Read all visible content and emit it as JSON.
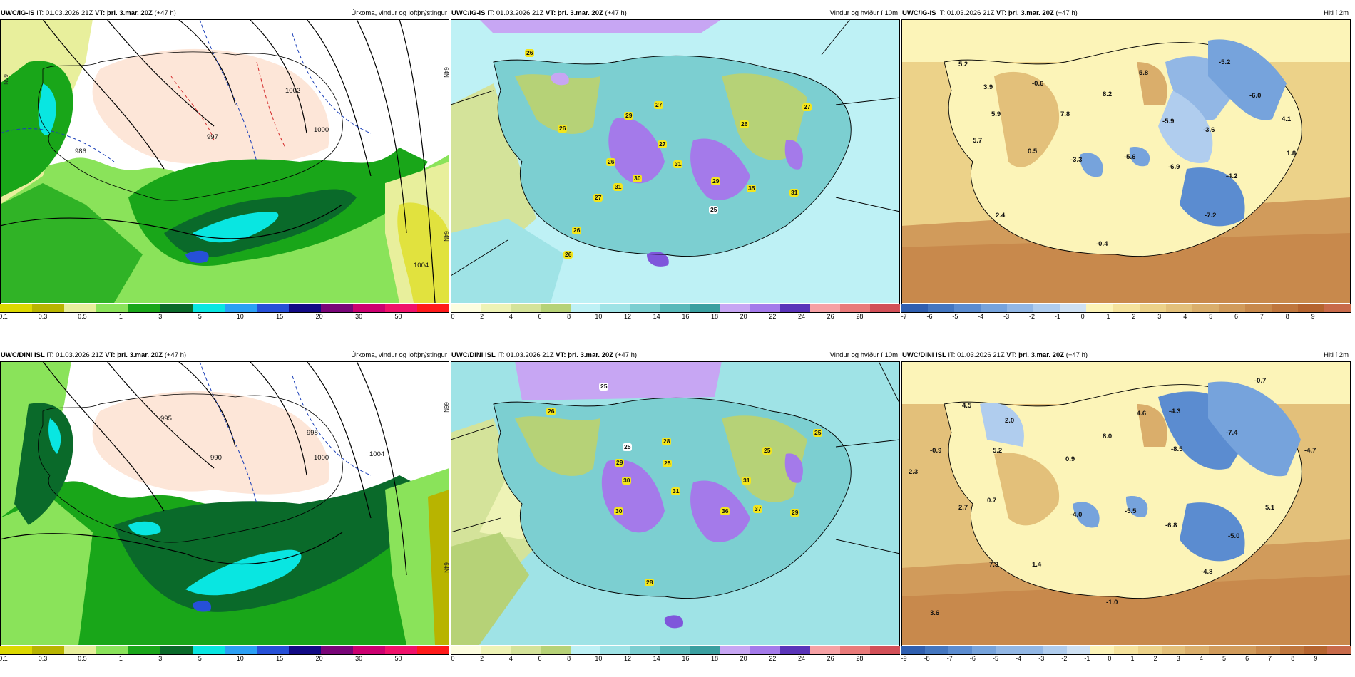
{
  "colors": {
    "precip": [
      "#dcd800",
      "#b8b400",
      "#e8ef9c",
      "#8ae35a",
      "#19a619",
      "#0a6a2a",
      "#09e6e1",
      "#2ba0f5",
      "#2650d8",
      "#120a85",
      "#790578",
      "#cc0070",
      "#f0116a",
      "#ff1a1a"
    ],
    "wind": [
      "#fdfde0",
      "#eef3b6",
      "#d4e39a",
      "#b6d277",
      "#9bc55c",
      "#bef1f5",
      "#9fe3e6",
      "#7ccfd1",
      "#59b9ba",
      "#3a9fa0",
      "#c7a6f3",
      "#a47aea",
      "#7f56db",
      "#5a34b9",
      "#f6a1a5",
      "#e97a7a",
      "#d24f57"
    ],
    "temp": [
      "#2f5fb0",
      "#4376c0",
      "#5b8cd0",
      "#76a3dc",
      "#92b7e5",
      "#b0cdee",
      "#cfe1f3",
      "#fcf4b8",
      "#f5e39d",
      "#ecd289",
      "#e3c07a",
      "#daae6b",
      "#d19b5b",
      "#c8894c",
      "#bf763d",
      "#b5642f",
      "#c86a4a"
    ]
  },
  "top_row": {
    "precip": {
      "model": "UWC/IG-IS",
      "it_label": "IT:",
      "it_value": "01.03.2026 21Z",
      "vt_label": "VT:",
      "vt_value": "þri. 3.mar. 20Z",
      "lead": "(+47 h)",
      "title": "Úrkoma, vindur og loftþrýstingur",
      "ticks": [
        "0.1",
        "0.3",
        "0.5",
        "1",
        "3",
        "5",
        "10",
        "15",
        "20",
        "30",
        "50"
      ],
      "contour_labels": [
        "986",
        "1000",
        "1004",
        "1002",
        "997"
      ],
      "lat_labels": [
        "66N",
        "64N",
        "64N"
      ]
    },
    "wind": {
      "model": "UWC/IG-IS",
      "it_label": "IT:",
      "it_value": "01.03.2026 21Z",
      "vt_label": "VT:",
      "vt_value": "þri. 3.mar. 20Z",
      "lead": "(+47 h)",
      "title": "Vindur og hviður í 10m",
      "ticks": [
        "0",
        "2",
        "4",
        "6",
        "8",
        "10",
        "12",
        "14",
        "16",
        "18",
        "20",
        "22",
        "24",
        "26",
        "28"
      ],
      "gusts": [
        "26",
        "29",
        "27",
        "26",
        "27",
        "26",
        "27",
        "26",
        "31",
        "30",
        "31",
        "27",
        "29",
        "35",
        "31",
        "26",
        "26",
        "25"
      ]
    },
    "temp": {
      "model": "UWC/IG-IS",
      "it_label": "IT:",
      "it_value": "01.03.2026 21Z",
      "vt_label": "VT:",
      "vt_value": "þri. 3.mar. 20Z",
      "lead": "(+47 h)",
      "title": "Hiti í 2m",
      "ticks": [
        "-7",
        "-6",
        "-5",
        "-4",
        "-3",
        "-2",
        "-1",
        "0",
        "1",
        "2",
        "3",
        "4",
        "5",
        "6",
        "7",
        "8",
        "9"
      ],
      "values": [
        "5.2",
        "3.9",
        "-0.6",
        "5.8",
        "-5.2",
        "8.2",
        "-6.0",
        "5.9",
        "7.8",
        "-5.9",
        "-3.6",
        "4.1",
        "5.7",
        "0.5",
        "-3.3",
        "-5.6",
        "-6.9",
        "1.8",
        "-4.2",
        "2.4",
        "-7.2",
        "-0.4"
      ]
    }
  },
  "bottom_row": {
    "precip": {
      "model": "UWC/DINI ISL",
      "it_label": "IT:",
      "it_value": "01.03.2026 21Z",
      "vt_label": "VT:",
      "vt_value": "þri. 3.mar. 20Z",
      "lead": "(+47 h)",
      "title": "Úrkoma, vindur og loftþrýstingur",
      "ticks": [
        "0.1",
        "0.3",
        "0.5",
        "1",
        "3",
        "5",
        "10",
        "15",
        "20",
        "30",
        "50"
      ],
      "contour_labels": [
        "995",
        "1000",
        "1004",
        "990",
        "998"
      ],
      "lat_labels": [
        "66N",
        "64N"
      ]
    },
    "wind": {
      "model": "UWC/DINI ISL",
      "it_label": "IT:",
      "it_value": "01.03.2026 21Z",
      "vt_label": "VT:",
      "vt_value": "þri. 3.mar. 20Z",
      "lead": "(+47 h)",
      "title": "Vindur og hviður í 10m",
      "ticks": [
        "0",
        "2",
        "4",
        "6",
        "8",
        "10",
        "12",
        "14",
        "16",
        "18",
        "20",
        "22",
        "24",
        "26",
        "28"
      ],
      "gusts": [
        "26",
        "28",
        "25",
        "25",
        "29",
        "25",
        "30",
        "31",
        "31",
        "30",
        "36",
        "37",
        "29",
        "28",
        "25",
        "25"
      ]
    },
    "temp": {
      "model": "UWC/DINI ISL",
      "it_label": "IT:",
      "it_value": "01.03.2026 21Z",
      "vt_label": "VT:",
      "vt_value": "þri. 3.mar. 20Z",
      "lead": "(+47 h)",
      "title": "Hiti í 2m",
      "ticks": [
        "-9",
        "-8",
        "-7",
        "-6",
        "-5",
        "-4",
        "-3",
        "-2",
        "-1",
        "0",
        "1",
        "2",
        "3",
        "4",
        "5",
        "6",
        "7",
        "8",
        "9"
      ],
      "values": [
        "4.5",
        "2.0",
        "-0.7",
        "4.6",
        "-4.3",
        "8.0",
        "-7.4",
        "-0.9",
        "5.2",
        "0.9",
        "-8.5",
        "-4.7",
        "2.3",
        "0.7",
        "2.7",
        "-4.0",
        "-5.5",
        "-6.8",
        "5.1",
        "-5.0",
        "7.3",
        "1.4",
        "-4.8",
        "-1.0",
        "3.6"
      ]
    }
  }
}
